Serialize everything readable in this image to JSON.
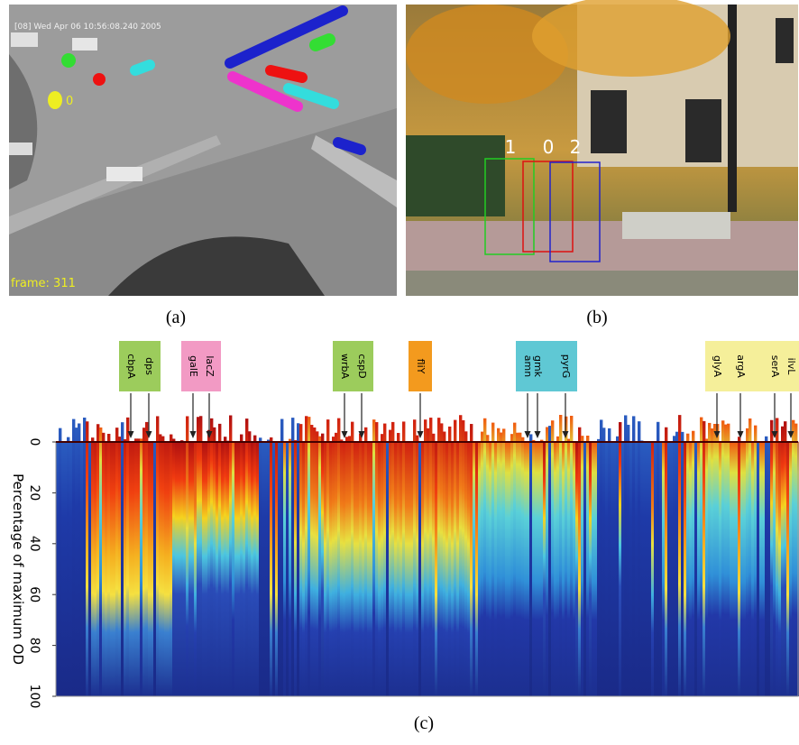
{
  "panels": {
    "a": {
      "caption": "(a)",
      "timestamp": "[08] Wed Apr 06 10:56:08.240 2005",
      "frame": "frame: 311",
      "track_label": "0"
    },
    "b": {
      "caption": "(b)",
      "box_labels": [
        "1",
        "0",
        "2"
      ]
    },
    "c": {
      "caption": "(c)",
      "y_axis_label": "Percentage of maximum OD",
      "yticks": [
        0,
        20,
        40,
        60,
        80,
        100
      ],
      "gene_groups": [
        {
          "color": "#9ccc5c",
          "genes": [
            "cbpA",
            "dps"
          ]
        },
        {
          "color": "#f29ac4",
          "genes": [
            "galE",
            "lacZ"
          ]
        },
        {
          "color": "#9ccc5c",
          "genes": [
            "wrbA",
            "cspD"
          ]
        },
        {
          "color": "#f39a1e",
          "genes": [
            "fliY"
          ]
        },
        {
          "color": "#5fc8d4",
          "genes": [
            "amn",
            "gmk",
            "pyrG"
          ]
        },
        {
          "color": "#f5ef9a",
          "genes": [
            "glyA",
            "argA",
            "serA",
            "ilvL"
          ]
        }
      ]
    }
  }
}
